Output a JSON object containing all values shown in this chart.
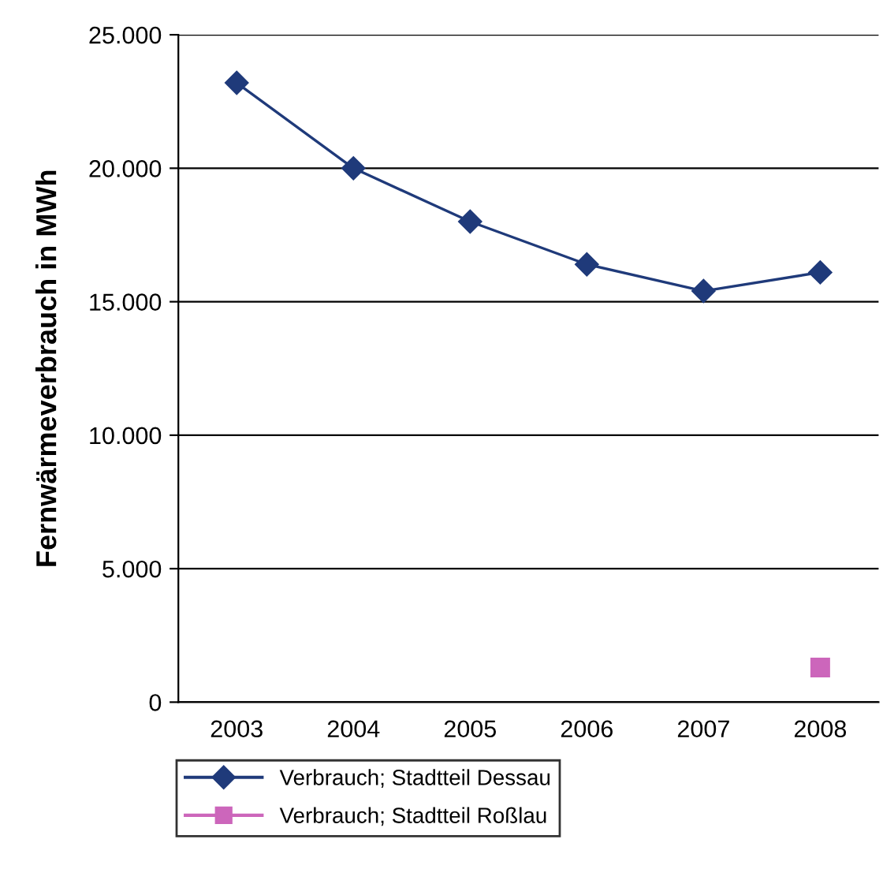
{
  "chart_data": {
    "type": "line",
    "ylabel": "Fernwärmeverbrauch in MWh",
    "categories": [
      "2003",
      "2004",
      "2005",
      "2006",
      "2007",
      "2008"
    ],
    "series": [
      {
        "name": "Verbrauch; Stadtteil Dessau",
        "color": "#1f3a7a",
        "marker": "diamond",
        "values": [
          23200,
          20000,
          18000,
          16400,
          15400,
          16100
        ]
      },
      {
        "name": "Verbrauch; Stadtteil Roßlau",
        "color": "#cc66bb",
        "marker": "square",
        "values": [
          null,
          null,
          null,
          null,
          null,
          1300
        ]
      }
    ],
    "ylim": [
      0,
      25000
    ],
    "yticks": [
      0,
      {
        "value": 5000,
        "label": "5.000"
      },
      {
        "value": 10000,
        "label": "10.000"
      },
      {
        "value": 15000,
        "label": "15.000"
      },
      {
        "value": 20000,
        "label": "20.000"
      },
      {
        "value": 25000,
        "label": "25.000"
      }
    ],
    "grid": "y",
    "legend": "bottom",
    "line_style": "solid"
  }
}
